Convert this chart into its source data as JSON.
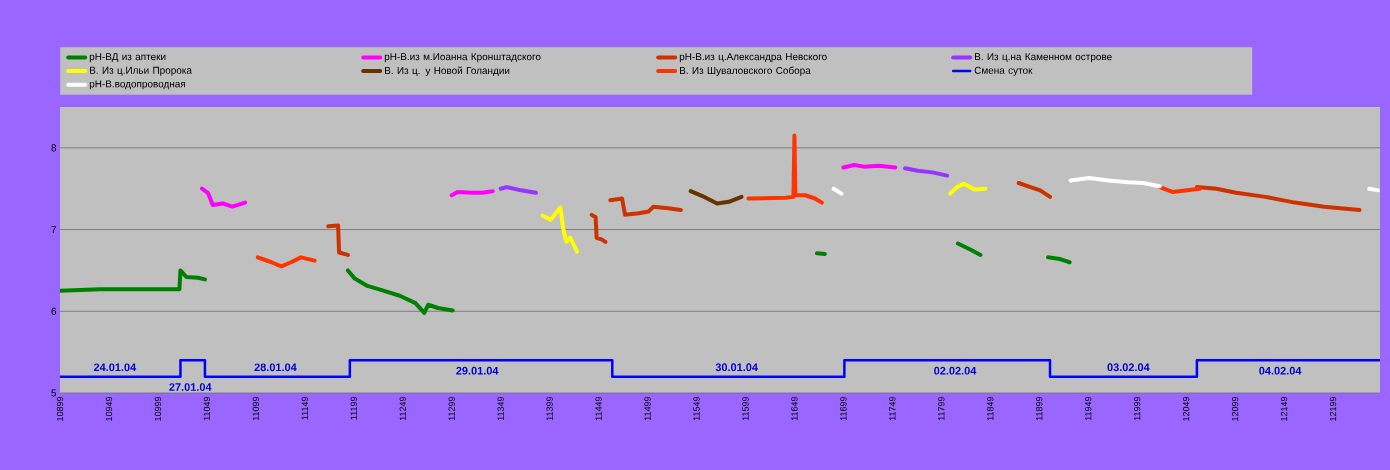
{
  "chart_data": {
    "type": "line",
    "xlim": [
      10899,
      12247
    ],
    "ylim": [
      5,
      8.5
    ],
    "xticks": [
      10899,
      10949,
      10999,
      11049,
      11099,
      11149,
      11199,
      11249,
      11299,
      11349,
      11399,
      11449,
      11499,
      11549,
      11599,
      11649,
      11699,
      11749,
      11799,
      11849,
      11899,
      11949,
      11999,
      12049,
      12099,
      12149,
      12199
    ],
    "yticks": [
      5,
      6,
      7,
      8
    ],
    "grid": "y",
    "legend": "top",
    "series": [
      {
        "name": "рН-ВД из аптеки",
        "color": "#008000",
        "x": [
          10899,
          10940,
          11021,
          11022,
          11028,
          11040,
          11047,
          11120,
          11193,
          11200,
          11213,
          11230,
          11246,
          11262,
          11271,
          11275,
          11285,
          11300,
          11500,
          11672,
          11680,
          11750,
          11816,
          11828,
          11839,
          11870,
          11908,
          11914,
          11920,
          11925,
          11930
        ],
        "values": [
          6.25,
          6.27,
          6.27,
          6.5,
          6.42,
          6.41,
          6.39,
          null,
          6.5,
          6.4,
          6.31,
          6.25,
          6.19,
          6.1,
          5.98,
          6.08,
          6.04,
          6.01,
          null,
          6.71,
          6.7,
          null,
          6.83,
          6.76,
          6.69,
          null,
          6.66,
          6.65,
          6.64,
          6.62,
          6.6
        ]
      },
      {
        "name": "рН-В.из м.Иоанна Кронштадского",
        "color": "#ff00ff",
        "x": [
          11044,
          11050,
          11055,
          11065,
          11075,
          11088,
          11200,
          11299,
          11305,
          11320,
          11330,
          11341,
          11500,
          11699,
          11710,
          11720,
          11735,
          11752
        ],
        "values": [
          7.5,
          7.45,
          7.3,
          7.32,
          7.28,
          7.33,
          null,
          7.42,
          7.46,
          7.45,
          7.45,
          7.47,
          null,
          7.76,
          7.79,
          7.77,
          7.78,
          7.76
        ]
      },
      {
        "name": "рН-В.из ц.Александра Невского",
        "color": "#cc3300",
        "x": [
          11173,
          11183,
          11184,
          11193,
          11300,
          11442,
          11446,
          11447,
          11452,
          11456,
          11458,
          11461,
          11473,
          11476,
          11490,
          11500,
          11505,
          11520,
          11533,
          11700,
          11878,
          11890,
          11900,
          11910,
          12000,
          12060,
          12080,
          12100,
          12130,
          12160,
          12190,
          12226
        ],
        "values": [
          7.04,
          7.05,
          6.72,
          6.69,
          null,
          7.18,
          7.15,
          6.9,
          6.88,
          6.85,
          null,
          7.36,
          7.38,
          7.18,
          7.2,
          7.22,
          7.28,
          7.26,
          7.24,
          null,
          7.57,
          7.52,
          7.48,
          7.4,
          null,
          7.52,
          7.5,
          7.45,
          7.4,
          7.33,
          7.28,
          7.24
        ]
      },
      {
        "name": "В. Из ц.на Каменном острове",
        "color": "#9933ff",
        "x": [
          11349,
          11355,
          11370,
          11385,
          11600,
          11762,
          11775,
          11790,
          11805
        ],
        "values": [
          7.5,
          7.52,
          7.48,
          7.45,
          null,
          7.75,
          7.72,
          7.7,
          7.66
        ]
      },
      {
        "name": "В. Из ц.Ильи Пророка",
        "color": "#ffff00",
        "x": [
          11392,
          11400,
          11410,
          11413,
          11416,
          11420,
          11427,
          11600,
          11808,
          11815,
          11822,
          11833,
          11844
        ],
        "values": [
          7.17,
          7.12,
          7.27,
          7.0,
          6.85,
          6.9,
          6.73,
          null,
          7.44,
          7.52,
          7.56,
          7.49,
          7.5
        ]
      },
      {
        "name": "В. Из ц. у Новой Голандии",
        "color": "#663300",
        "x": [
          11543,
          11555,
          11570,
          11582,
          11595
        ],
        "values": [
          7.47,
          7.41,
          7.32,
          7.34,
          7.4
        ]
      },
      {
        "name": "В. Из Шуваловского Собора",
        "color": "#ff3300",
        "x": [
          11101,
          11115,
          11125,
          11135,
          11145,
          11159,
          11400,
          11602,
          11640,
          11648,
          11649,
          11650,
          11660,
          11670,
          11677,
          11850,
          12022,
          12035,
          12050,
          12063
        ],
        "values": [
          6.66,
          6.6,
          6.55,
          6.6,
          6.66,
          6.62,
          null,
          7.38,
          7.39,
          7.4,
          8.15,
          7.42,
          7.42,
          7.38,
          7.33,
          null,
          7.52,
          7.46,
          7.48,
          7.5
        ]
      },
      {
        "name": "Смена суток",
        "color": "#0000ff",
        "type": "step",
        "x": [
          10899,
          11022,
          11047,
          11195,
          11463,
          11700,
          11910,
          12060,
          12247
        ],
        "values": [
          5.2,
          5.4,
          5.2,
          5.4,
          5.2,
          5.4,
          5.2,
          5.4,
          5.4
        ]
      },
      {
        "name": "рН-В.водопроводная",
        "color": "#ffffff",
        "x": [
          11689,
          11697,
          11800,
          11931,
          11950,
          11970,
          11990,
          12005,
          12022,
          12100,
          12236,
          12245
        ],
        "values": [
          7.5,
          7.44,
          null,
          7.6,
          7.63,
          7.6,
          7.58,
          7.57,
          7.53,
          null,
          7.5,
          7.48
        ]
      }
    ],
    "annotations": [
      {
        "text": "24.01.04",
        "x": 10955,
        "y": 5.2
      },
      {
        "text": "27.01.04",
        "x": 11032,
        "y": 5.4
      },
      {
        "text": "28.01.04",
        "x": 11119,
        "y": 5.2
      },
      {
        "text": "29.01.04",
        "x": 11325,
        "y": 5.4
      },
      {
        "text": "30.01.04",
        "x": 11590,
        "y": 5.2
      },
      {
        "text": "02.02.04",
        "x": 11813,
        "y": 5.4
      },
      {
        "text": "03.02.04",
        "x": 11990,
        "y": 5.2
      },
      {
        "text": "04.02.04",
        "x": 12145,
        "y": 5.4
      }
    ]
  }
}
